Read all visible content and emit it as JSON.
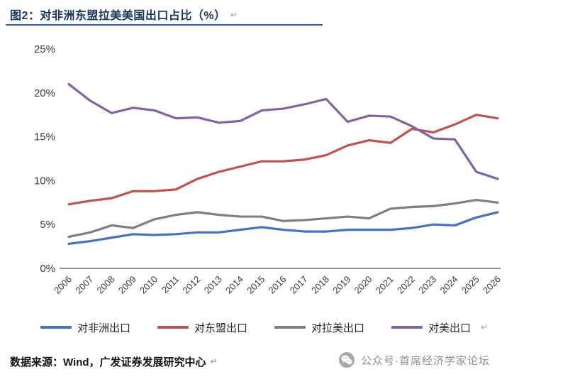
{
  "header": {
    "title": "图2：对非洲东盟拉美美国出口占比（%）",
    "return_mark": "↵"
  },
  "chart_data": {
    "type": "line",
    "title": "对非洲东盟拉美美国出口占比（%）",
    "x": [
      2006,
      2007,
      2008,
      2009,
      2010,
      2011,
      2012,
      2013,
      2014,
      2015,
      2016,
      2017,
      2018,
      2019,
      2020,
      2021,
      2022,
      2023,
      2024,
      2025,
      2026
    ],
    "ylim": [
      0,
      25
    ],
    "ytick_labels": [
      "0%",
      "5%",
      "10%",
      "15%",
      "20%",
      "25%"
    ],
    "grid": false,
    "legend_position": "bottom",
    "series": [
      {
        "name": "对非洲出口",
        "color": "#4472C4",
        "values": [
          2.8,
          3.1,
          3.5,
          3.9,
          3.8,
          3.9,
          4.1,
          4.1,
          4.4,
          4.7,
          4.4,
          4.2,
          4.2,
          4.4,
          4.4,
          4.4,
          4.6,
          5.0,
          4.9,
          5.8,
          6.4
        ]
      },
      {
        "name": "对东盟出口",
        "color": "#C3514E",
        "values": [
          7.3,
          7.7,
          8.0,
          8.8,
          8.8,
          9.0,
          10.2,
          11.0,
          11.6,
          12.2,
          12.2,
          12.4,
          12.9,
          14.0,
          14.6,
          14.3,
          15.9,
          15.5,
          16.4,
          17.5,
          17.1
        ]
      },
      {
        "name": "对拉美出口",
        "color": "#7F7F7F",
        "values": [
          3.6,
          4.1,
          4.9,
          4.6,
          5.6,
          6.1,
          6.4,
          6.1,
          5.9,
          5.9,
          5.4,
          5.5,
          5.7,
          5.9,
          5.7,
          6.8,
          7.0,
          7.1,
          7.4,
          7.8,
          7.5
        ]
      },
      {
        "name": "对美出口",
        "color": "#8064A2",
        "values": [
          21.0,
          19.1,
          17.7,
          18.3,
          18.0,
          17.1,
          17.2,
          16.6,
          16.8,
          18.0,
          18.2,
          18.7,
          19.3,
          16.7,
          17.4,
          17.3,
          16.2,
          14.8,
          14.7,
          11.0,
          10.2
        ]
      }
    ]
  },
  "legend": {
    "return_mark": "↵"
  },
  "footer": {
    "source": "数据来源：Wind，广发证券发展研究中心",
    "return_mark": "↵",
    "watermark": "公众号·首席经济学家论坛"
  },
  "colors": {
    "title_text": "#17375E",
    "title_rule": "#2E5AA0",
    "axis_line": "#6a6a6a",
    "tick_text": "#3a3a3a",
    "watermark_gray": "#8f8f8f"
  }
}
